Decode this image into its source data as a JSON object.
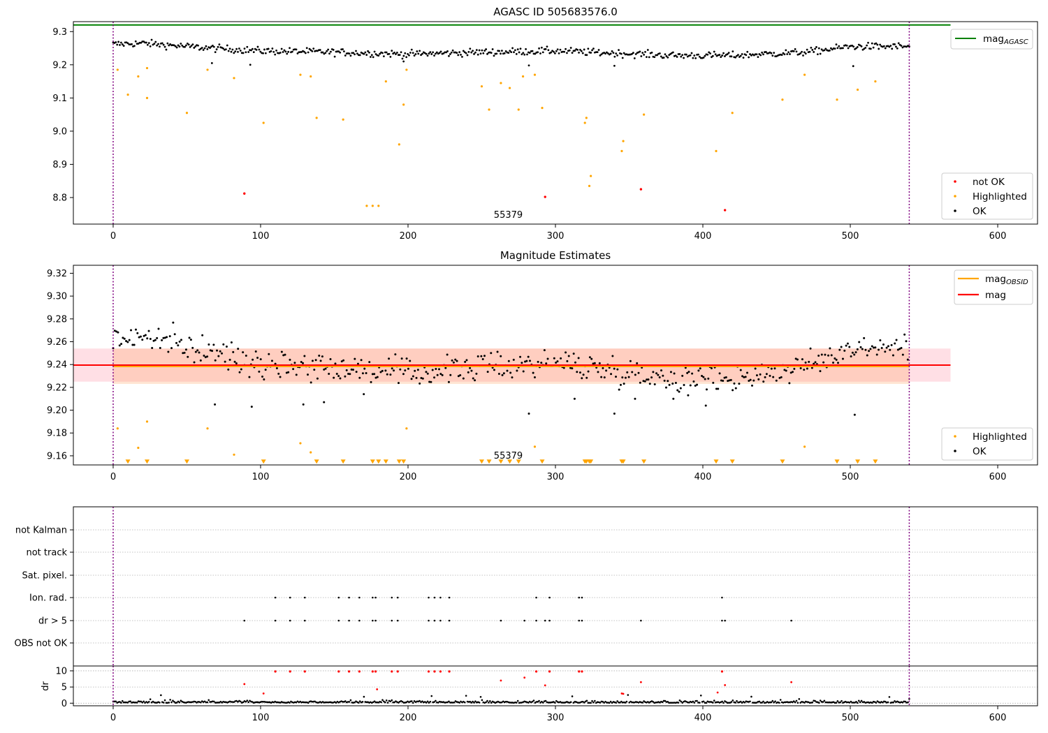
{
  "chart_data": [
    {
      "type": "scatter",
      "title": "AGASC ID 505683576.0",
      "xlim": [
        -27,
        627
      ],
      "ylim": [
        8.72,
        9.33
      ],
      "xticks": [
        0,
        100,
        200,
        300,
        400,
        500,
        600
      ],
      "yticks": [
        8.8,
        8.9,
        9.0,
        9.1,
        9.2,
        9.3
      ],
      "ytick_labels": [
        "8.8",
        "8.9",
        "9.0",
        "9.1",
        "9.2",
        "9.3"
      ],
      "obs_boundaries": [
        0,
        540
      ],
      "obsid_label": "55379",
      "obsid_label_x": 268,
      "mag_agasc": 9.32,
      "mag_agasc_x": [
        -27,
        568
      ],
      "legend_top": [
        {
          "label": "mag",
          "sub": "AGASC",
          "color": "#008000"
        }
      ],
      "legend_bottom": [
        {
          "label": "not OK",
          "color": "#ff0000"
        },
        {
          "label": "Highlighted",
          "color": "#ffa500"
        },
        {
          "label": "OK",
          "color": "#000000"
        }
      ],
      "ok_trend": {
        "x": [
          0,
          20,
          60,
          100,
          150,
          200,
          250,
          300,
          340,
          380,
          420,
          470,
          500,
          540
        ],
        "y": [
          9.262,
          9.265,
          9.252,
          9.242,
          9.238,
          9.232,
          9.238,
          9.242,
          9.235,
          9.228,
          9.228,
          9.238,
          9.255,
          9.255
        ],
        "scatter": 0.014
      },
      "highlighted": {
        "x": [
          3,
          10,
          17,
          23,
          23,
          50,
          64,
          82,
          102,
          127,
          134,
          138,
          156,
          172,
          176,
          180,
          185,
          194,
          197,
          199,
          250,
          255,
          263,
          269,
          275,
          278,
          286,
          291,
          320,
          321,
          323,
          324,
          345,
          346,
          360,
          409,
          420,
          454,
          469,
          491,
          505,
          517
        ],
        "y": [
          9.185,
          9.11,
          9.165,
          9.1,
          9.19,
          9.055,
          9.185,
          9.16,
          9.025,
          9.17,
          9.165,
          9.04,
          9.035,
          8.775,
          8.775,
          8.775,
          9.15,
          8.96,
          9.08,
          9.185,
          9.135,
          9.065,
          9.145,
          9.13,
          9.065,
          9.165,
          9.17,
          9.07,
          9.025,
          9.04,
          8.835,
          8.865,
          8.94,
          8.97,
          9.05,
          8.94,
          9.055,
          9.095,
          9.17,
          9.095,
          9.125,
          9.15
        ]
      },
      "not_ok": {
        "x": [
          89,
          293,
          358,
          415
        ],
        "y": [
          8.812,
          8.802,
          8.825,
          8.762
        ]
      }
    },
    {
      "type": "scatter",
      "title": "Magnitude Estimates",
      "xlim": [
        -27,
        627
      ],
      "ylim": [
        9.152,
        9.327
      ],
      "xticks": [
        0,
        100,
        200,
        300,
        400,
        500,
        600
      ],
      "yticks": [
        9.16,
        9.18,
        9.2,
        9.22,
        9.24,
        9.26,
        9.28,
        9.3,
        9.32
      ],
      "ytick_labels": [
        "9.16",
        "9.18",
        "9.20",
        "9.22",
        "9.24",
        "9.26",
        "9.28",
        "9.30",
        "9.32"
      ],
      "obs_boundaries": [
        0,
        540
      ],
      "obsid_label": "55379",
      "obsid_label_x": 268,
      "mag": 9.2395,
      "mag_band": [
        9.225,
        9.254
      ],
      "mag_x": [
        -27,
        568
      ],
      "mag_obsid": 9.2385,
      "mag_obsid_band": [
        9.223,
        9.254
      ],
      "mag_obsid_x": [
        0,
        540
      ],
      "legend_top": [
        {
          "label": "mag",
          "sub": "OBSID",
          "color": "#ffa500"
        },
        {
          "label": "mag",
          "sub": "",
          "color": "#ff0000"
        }
      ],
      "legend_bottom": [
        {
          "label": "Highlighted",
          "color": "#ffa500"
        },
        {
          "label": "OK",
          "color": "#000000"
        }
      ],
      "highlighted": {
        "x": [
          3,
          17,
          23,
          64,
          82,
          127,
          134,
          199,
          286,
          469
        ],
        "y": [
          9.184,
          9.167,
          9.19,
          9.184,
          9.161,
          9.171,
          9.163,
          9.184,
          9.168,
          9.168
        ]
      },
      "offscale_low_x": [
        10,
        23,
        50,
        102,
        138,
        156,
        176,
        180,
        185,
        194,
        197,
        250,
        255,
        263,
        269,
        275,
        291,
        320,
        321,
        323,
        324,
        345,
        346,
        360,
        409,
        420,
        454,
        491,
        505,
        517
      ],
      "offscale_low_value": 9.155,
      "ok_outliers": {
        "x": [
          69,
          94,
          129,
          143,
          170,
          282,
          313,
          340,
          354,
          380,
          390,
          402,
          503
        ],
        "y": [
          9.205,
          9.203,
          9.205,
          9.207,
          9.214,
          9.197,
          9.21,
          9.197,
          9.21,
          9.21,
          9.213,
          9.204,
          9.196
        ]
      }
    },
    {
      "type": "scatter",
      "xlim": [
        -27,
        627
      ],
      "xticks": [
        0,
        100,
        200,
        300,
        400,
        500,
        600
      ],
      "flag_labels": [
        "not Kalman",
        "not track",
        "Sat. pixel.",
        "Ion. rad.",
        "dr > 5",
        "OBS not OK"
      ],
      "ion_rad_x": [
        110,
        120,
        130,
        153,
        160,
        167,
        176,
        178,
        189,
        193,
        214,
        218,
        222,
        228,
        287,
        296,
        316,
        318,
        413
      ],
      "dr_gt5_x": [
        89,
        110,
        120,
        130,
        153,
        160,
        167,
        176,
        178,
        189,
        193,
        214,
        218,
        222,
        228,
        263,
        279,
        287,
        293,
        296,
        316,
        318,
        358,
        413,
        415,
        460
      ],
      "obs_boundaries": [
        0,
        540
      ]
    },
    {
      "type": "scatter",
      "ylabel": "dr",
      "xlim": [
        -27,
        627
      ],
      "ylim": [
        -0.8,
        11.5
      ],
      "xticks": [
        0,
        100,
        200,
        300,
        400,
        500,
        600
      ],
      "yticks": [
        0,
        5,
        10
      ],
      "ytick_labels": [
        "0",
        "5",
        "10"
      ],
      "obs_boundaries": [
        0,
        540
      ],
      "dr_clip_x": [
        110,
        120,
        130,
        153,
        160,
        167,
        176,
        178,
        189,
        193,
        214,
        218,
        222,
        228,
        287,
        296,
        316,
        318,
        413
      ],
      "dr_clip_value": 9.8,
      "dr_red": {
        "x": [
          89,
          102,
          179,
          263,
          279,
          293,
          345,
          346,
          358,
          410,
          415,
          460
        ],
        "y": [
          5.9,
          3.0,
          4.3,
          7.0,
          7.9,
          5.5,
          3.0,
          2.9,
          6.5,
          3.3,
          5.6,
          6.5
        ]
      }
    }
  ]
}
